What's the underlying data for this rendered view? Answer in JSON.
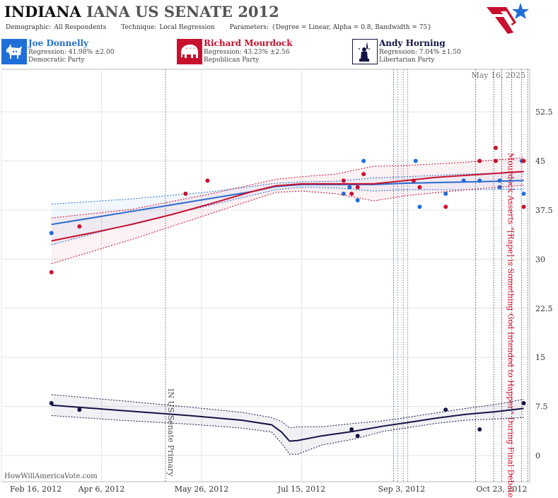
{
  "header": {
    "title_main": "INDIANA",
    "title_sub": "IANA US SENATE 2012",
    "demographic_label": "Demographic:",
    "demographic_value": "All Respondents",
    "technique_label": "Technique:",
    "technique_value": "Local Regression",
    "parameters_label": "Parameters:",
    "parameters_value": "{Degree = Linear, Alpha = 0.8, Bandwidth = 75}"
  },
  "candidates": [
    {
      "name": "Joe Donnelly",
      "regression": "Regression: 41.98% ±2.00",
      "party": "Democratic Party",
      "color": "#1f6fd8",
      "icon": "donkey-icon"
    },
    {
      "name": "Richard Mourdock",
      "regression": "Regression: 43.23% ±2.56",
      "party": "Republican Party",
      "color": "#c8102e",
      "icon": "elephant-icon"
    },
    {
      "name": "Andy Horning",
      "regression": "Regression: 7.04% ±1.50",
      "party": "Libertarian Party",
      "color": "#141446",
      "icon": "liberty-statue-icon"
    }
  ],
  "watermark": "HowWillAmericaVote.com",
  "chart_data": {
    "type": "line",
    "date_label": "May 16, 2025",
    "x_ticks": [
      "Feb 16, 2012",
      "Apr 6, 2012",
      "May 26, 2012",
      "Jul 15, 2012",
      "Sep 3, 2012",
      "Oct 23, 2012"
    ],
    "x_range": [
      "2012-02-16",
      "2012-11-06"
    ],
    "y_ticks": [
      0,
      7.5,
      15,
      22.5,
      30,
      37.5,
      45,
      52.5
    ],
    "ylim": [
      -4,
      59
    ],
    "grid": true,
    "series": [
      {
        "name": "Joe Donnelly",
        "color": "#1f6fd8",
        "trend": [
          [
            "2012-03-12",
            35.3
          ],
          [
            "2012-04-01",
            36.3
          ],
          [
            "2012-04-21",
            37.3
          ],
          [
            "2012-05-11",
            38.3
          ],
          [
            "2012-05-31",
            39.3
          ],
          [
            "2012-06-20",
            40.3
          ],
          [
            "2012-07-02",
            41.1
          ],
          [
            "2012-07-15",
            41.4
          ],
          [
            "2012-08-01",
            41.4
          ],
          [
            "2012-08-20",
            41.4
          ],
          [
            "2012-09-05",
            41.6
          ],
          [
            "2012-09-20",
            41.7
          ],
          [
            "2012-10-05",
            41.8
          ],
          [
            "2012-10-20",
            41.9
          ],
          [
            "2012-11-03",
            42.0
          ]
        ],
        "upper": [
          [
            "2012-03-12",
            38.4
          ],
          [
            "2012-04-21",
            39.2
          ],
          [
            "2012-05-31",
            40.3
          ],
          [
            "2012-07-02",
            41.6
          ],
          [
            "2012-07-15",
            41.8
          ],
          [
            "2012-08-01",
            41.9
          ],
          [
            "2012-08-20",
            42.4
          ],
          [
            "2012-09-05",
            42.6
          ],
          [
            "2012-10-05",
            43.0
          ],
          [
            "2012-11-03",
            43.3
          ]
        ],
        "lower": [
          [
            "2012-03-12",
            32.2
          ],
          [
            "2012-04-21",
            35.4
          ],
          [
            "2012-05-31",
            38.3
          ],
          [
            "2012-07-02",
            40.6
          ],
          [
            "2012-07-15",
            41.0
          ],
          [
            "2012-08-01",
            40.9
          ],
          [
            "2012-08-20",
            40.4
          ],
          [
            "2012-09-05",
            40.6
          ],
          [
            "2012-10-05",
            40.6
          ],
          [
            "2012-11-03",
            40.7
          ]
        ],
        "points": [
          [
            "2012-03-12",
            34
          ],
          [
            "2012-08-05",
            40
          ],
          [
            "2012-08-08",
            41
          ],
          [
            "2012-08-12",
            39
          ],
          [
            "2012-08-15",
            45
          ],
          [
            "2012-09-10",
            45
          ],
          [
            "2012-09-12",
            38
          ],
          [
            "2012-09-25",
            40
          ],
          [
            "2012-10-04",
            42
          ],
          [
            "2012-10-12",
            42
          ],
          [
            "2012-10-22",
            42
          ],
          [
            "2012-10-22",
            41
          ],
          [
            "2012-11-02",
            45
          ],
          [
            "2012-11-03",
            40
          ]
        ]
      },
      {
        "name": "Richard Mourdock",
        "color": "#c8102e",
        "trend": [
          [
            "2012-03-12",
            32.8
          ],
          [
            "2012-04-01",
            34.0
          ],
          [
            "2012-04-21",
            35.3
          ],
          [
            "2012-05-11",
            36.8
          ],
          [
            "2012-05-31",
            38.5
          ],
          [
            "2012-06-20",
            40.3
          ],
          [
            "2012-07-02",
            41.2
          ],
          [
            "2012-07-15",
            41.5
          ],
          [
            "2012-08-01",
            41.5
          ],
          [
            "2012-08-20",
            41.5
          ],
          [
            "2012-09-05",
            42.0
          ],
          [
            "2012-09-20",
            42.5
          ],
          [
            "2012-10-05",
            42.8
          ],
          [
            "2012-10-20",
            43.1
          ],
          [
            "2012-11-03",
            43.4
          ]
        ],
        "upper": [
          [
            "2012-03-12",
            36.3
          ],
          [
            "2012-04-21",
            37.6
          ],
          [
            "2012-05-31",
            40.0
          ],
          [
            "2012-07-02",
            42.2
          ],
          [
            "2012-07-15",
            42.6
          ],
          [
            "2012-08-01",
            43.0
          ],
          [
            "2012-08-20",
            44.2
          ],
          [
            "2012-09-05",
            44.3
          ],
          [
            "2012-10-05",
            44.8
          ],
          [
            "2012-11-03",
            45.5
          ]
        ],
        "lower": [
          [
            "2012-03-12",
            29.3
          ],
          [
            "2012-04-21",
            33.0
          ],
          [
            "2012-05-31",
            37.0
          ],
          [
            "2012-07-02",
            40.2
          ],
          [
            "2012-07-15",
            40.4
          ],
          [
            "2012-08-01",
            40.0
          ],
          [
            "2012-08-20",
            38.9
          ],
          [
            "2012-09-05",
            39.7
          ],
          [
            "2012-10-05",
            40.6
          ],
          [
            "2012-11-03",
            41.3
          ]
        ],
        "points": [
          [
            "2012-03-12",
            28
          ],
          [
            "2012-03-26",
            35
          ],
          [
            "2012-05-18",
            40
          ],
          [
            "2012-05-29",
            42
          ],
          [
            "2012-08-05",
            42
          ],
          [
            "2012-08-09",
            40
          ],
          [
            "2012-08-12",
            41
          ],
          [
            "2012-08-15",
            43
          ],
          [
            "2012-09-09",
            42
          ],
          [
            "2012-09-12",
            41
          ],
          [
            "2012-09-25",
            38
          ],
          [
            "2012-10-12",
            45
          ],
          [
            "2012-10-20",
            47
          ],
          [
            "2012-10-20",
            45
          ],
          [
            "2012-11-03",
            45
          ],
          [
            "2012-11-03",
            38
          ]
        ]
      },
      {
        "name": "Andy Horning",
        "color": "#141446",
        "trend": [
          [
            "2012-03-12",
            7.7
          ],
          [
            "2012-04-15",
            6.9
          ],
          [
            "2012-05-20",
            6.1
          ],
          [
            "2012-06-15",
            5.4
          ],
          [
            "2012-06-30",
            4.7
          ],
          [
            "2012-07-05",
            3.6
          ],
          [
            "2012-07-09",
            2.2
          ],
          [
            "2012-07-13",
            2.3
          ],
          [
            "2012-07-25",
            3.0
          ],
          [
            "2012-08-10",
            3.7
          ],
          [
            "2012-08-25",
            4.5
          ],
          [
            "2012-09-05",
            5.0
          ],
          [
            "2012-09-20",
            5.7
          ],
          [
            "2012-10-05",
            6.3
          ],
          [
            "2012-10-20",
            6.7
          ],
          [
            "2012-11-03",
            7.2
          ]
        ],
        "upper": [
          [
            "2012-03-12",
            9.3
          ],
          [
            "2012-04-15",
            8.4
          ],
          [
            "2012-05-20",
            7.4
          ],
          [
            "2012-06-15",
            6.6
          ],
          [
            "2012-06-30",
            5.8
          ],
          [
            "2012-07-05",
            5.2
          ],
          [
            "2012-07-09",
            4.2
          ],
          [
            "2012-07-13",
            4.4
          ],
          [
            "2012-07-25",
            4.4
          ],
          [
            "2012-08-10",
            4.9
          ],
          [
            "2012-08-25",
            5.3
          ],
          [
            "2012-09-05",
            5.8
          ],
          [
            "2012-09-20",
            6.5
          ],
          [
            "2012-10-05",
            7.2
          ],
          [
            "2012-10-20",
            7.8
          ],
          [
            "2012-11-03",
            8.6
          ]
        ],
        "lower": [
          [
            "2012-03-12",
            6.1
          ],
          [
            "2012-04-15",
            5.4
          ],
          [
            "2012-05-20",
            4.8
          ],
          [
            "2012-06-15",
            4.2
          ],
          [
            "2012-06-30",
            3.6
          ],
          [
            "2012-07-05",
            1.9
          ],
          [
            "2012-07-09",
            0.2
          ],
          [
            "2012-07-13",
            0.2
          ],
          [
            "2012-07-25",
            1.6
          ],
          [
            "2012-08-10",
            2.5
          ],
          [
            "2012-08-25",
            3.7
          ],
          [
            "2012-09-05",
            4.2
          ],
          [
            "2012-09-20",
            4.9
          ],
          [
            "2012-10-05",
            5.4
          ],
          [
            "2012-10-20",
            5.6
          ],
          [
            "2012-11-03",
            5.8
          ]
        ],
        "points": [
          [
            "2012-03-12",
            8
          ],
          [
            "2012-03-26",
            7
          ],
          [
            "2012-08-09",
            4
          ],
          [
            "2012-08-12",
            3
          ],
          [
            "2012-09-25",
            7
          ],
          [
            "2012-10-12",
            4
          ],
          [
            "2012-11-03",
            8
          ]
        ]
      }
    ],
    "events": [
      {
        "date": "2012-05-08",
        "label": "IN US Senate Primary",
        "color": "#555555"
      },
      {
        "date": "2012-10-23",
        "label": "Mourdock Asserts \"[Rape] is Something God Intended to Happen\" During Final Debate",
        "color": "#c8102e"
      }
    ],
    "poll_markers": [
      {
        "date": "2012-08-30",
        "color": "#c8102e"
      },
      {
        "date": "2012-09-01",
        "color": "#1f6fd8"
      },
      {
        "date": "2012-09-04",
        "color": "#3a9a3a"
      },
      {
        "date": "2012-09-06",
        "color": "#1f6fd8"
      },
      {
        "date": "2012-10-10",
        "color": "#333333"
      },
      {
        "date": "2012-10-19",
        "color": "#333333"
      },
      {
        "date": "2012-10-28",
        "color": "#333333"
      },
      {
        "date": "2012-11-02",
        "color": "#c8102e"
      },
      {
        "date": "2012-11-05",
        "color": "#333333"
      }
    ]
  }
}
